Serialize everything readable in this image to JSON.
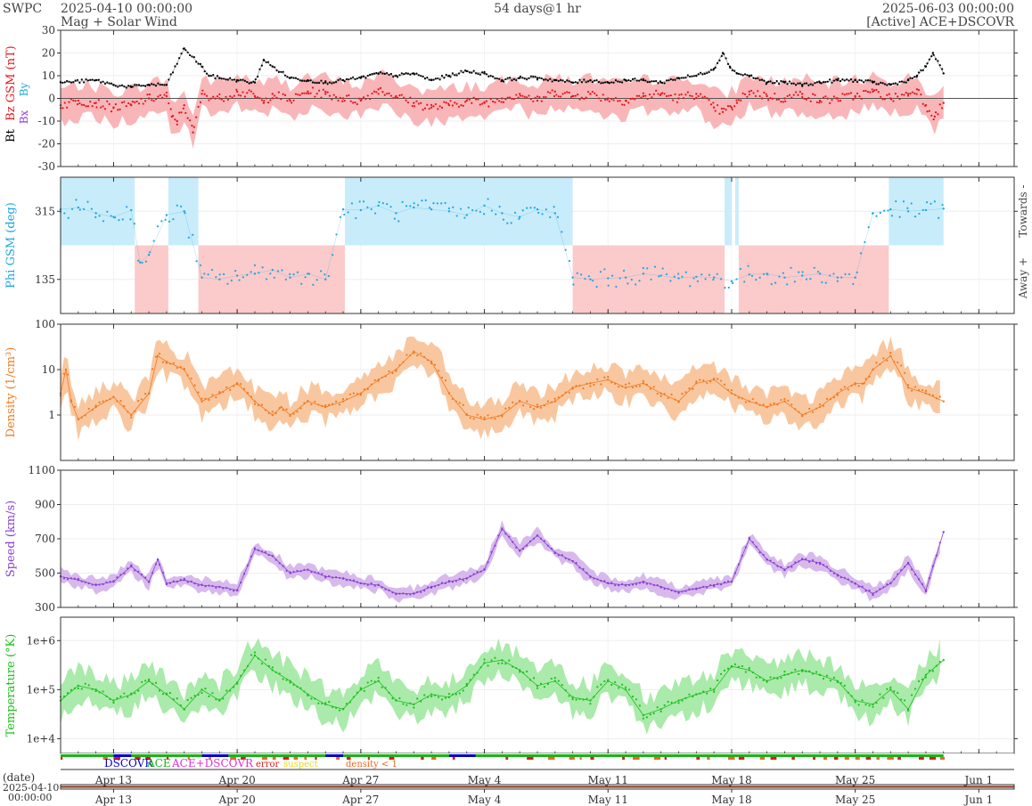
{
  "header": {
    "org": "SWPC",
    "start": "2025-04-10 00:00:00",
    "subtitle": "Mag + Solar Wind",
    "span": "54 days@1 hr",
    "end": "2025-06-03 00:00:00",
    "source": "[Active] ACE+DSCOVR"
  },
  "footer": {
    "date_label": "(date)",
    "date_value": "2025-04-10",
    "time_value": "00:00:00"
  },
  "legend": {
    "dscovr": "DSCOVR",
    "ace": "ACE",
    "both": "ACE+DSCOVR",
    "error": "error",
    "suspect": "suspect",
    "density": "density < 1"
  },
  "colors": {
    "bt": "#000000",
    "bz": "#e8141c",
    "bz_fill": "#f7a4a8",
    "bx": "#8b3fd6",
    "by": "#22aadd",
    "phi": "#1ea6e3",
    "phi_towards_fill": "#c8ecfa",
    "phi_away_fill": "#fbcaca",
    "density": "#f07a22",
    "density_fill": "#f8bd8e",
    "speed": "#8a3fd3",
    "speed_fill": "#d0ade9",
    "temperature": "#1fbf1f",
    "temperature_fill": "#9be69b",
    "dscovr": "#0000cc",
    "ace": "#18b418",
    "both": "#e02fd8",
    "error": "#e41818",
    "suspect": "#ead51a",
    "density_flag": "#ee6622"
  },
  "chart_data": {
    "type": "line",
    "x_unit": "days since 2025-04-10",
    "x_range": [
      0,
      54
    ],
    "x_ticks": [
      {
        "day": 3,
        "label": "Apr 13"
      },
      {
        "day": 10,
        "label": "Apr 20"
      },
      {
        "day": 17,
        "label": "Apr 27"
      },
      {
        "day": 24,
        "label": "May 4"
      },
      {
        "day": 31,
        "label": "May 11"
      },
      {
        "day": 38,
        "label": "May 18"
      },
      {
        "day": 45,
        "label": "May 25"
      },
      {
        "day": 52,
        "label": "Jun 1"
      }
    ],
    "data_end_day": 50,
    "panels": [
      {
        "id": "mag",
        "ylabel": "Bt  Bz GSM (nT)",
        "ylabel_parts": [
          "Bt",
          "Bz GSM (nT)"
        ],
        "legend_extra": [
          "Bx",
          "By"
        ],
        "scale": "linear",
        "ylim": [
          -30,
          30
        ],
        "yticks": [
          -30,
          -20,
          -10,
          0,
          10,
          20,
          30
        ],
        "series": [
          {
            "name": "Bt",
            "x": [
              0,
              2,
              3,
              4,
              5,
              6,
              7,
              8,
              8.4,
              9,
              10,
              10.8,
              11,
              11.5,
              12,
              13,
              14,
              15,
              16,
              17,
              18,
              19,
              20,
              21,
              22,
              23,
              24,
              25,
              26,
              27,
              28,
              29,
              30,
              31,
              32,
              33,
              34,
              35,
              36,
              37,
              37.5,
              37.9,
              38.3,
              39,
              40,
              41,
              42,
              43,
              44,
              45,
              46,
              47,
              48,
              48.5,
              49,
              49.4,
              50
            ],
            "y": [
              7,
              8,
              6,
              5,
              6,
              6,
              22,
              14,
              10,
              9,
              8,
              7,
              7,
              17,
              14,
              9,
              8,
              7,
              8,
              9,
              11,
              10,
              11,
              8,
              10,
              12,
              11,
              8,
              9,
              9,
              8,
              7,
              8,
              7,
              8,
              8,
              7,
              9,
              10,
              13,
              20,
              14,
              11,
              10,
              7,
              7,
              6,
              7,
              8,
              8,
              7,
              6,
              8,
              10,
              14,
              20,
              11
            ]
          },
          {
            "name": "Bz",
            "x": [
              0,
              1,
              2,
              3,
              4,
              5,
              6,
              6.3,
              6.6,
              7,
              7.5,
              8,
              9,
              10,
              11,
              11.5,
              12,
              13,
              14,
              15,
              16,
              17,
              18,
              19,
              20,
              21,
              22,
              23,
              24,
              25,
              26,
              27,
              28,
              29,
              30,
              31,
              32,
              33,
              34,
              35,
              36,
              37,
              37.5,
              38,
              38.3,
              39,
              40,
              41,
              42,
              43,
              44,
              45,
              46,
              47,
              48,
              48.5,
              49,
              49.5,
              50
            ],
            "y": [
              -3,
              -1,
              -2,
              -4,
              -3,
              0,
              1,
              -8,
              -10,
              -3,
              -15,
              2,
              0,
              3,
              1,
              -2,
              2,
              -1,
              3,
              2,
              0,
              -1,
              4,
              1,
              -2,
              -4,
              -3,
              -1,
              -2,
              0,
              2,
              -1,
              3,
              1,
              2,
              0,
              -1,
              1,
              2,
              0,
              2,
              -4,
              -6,
              -4,
              -2,
              3,
              1,
              0,
              2,
              -1,
              0,
              1,
              3,
              0,
              2,
              4,
              -3,
              -8,
              -2
            ]
          }
        ]
      },
      {
        "id": "phi",
        "ylabel": "Phi GSM (deg)",
        "right_labels": [
          "Towards -",
          "Away +"
        ],
        "scale": "linear",
        "ylim": [
          45,
          405
        ],
        "yticks": [
          135,
          315
        ],
        "towards_intervals": [
          [
            0,
            4.2
          ],
          [
            6.1,
            7.8
          ],
          [
            16.1,
            29
          ],
          [
            37.6,
            38
          ],
          [
            38.2,
            38.4
          ],
          [
            46.9,
            50
          ]
        ],
        "away_intervals": [
          [
            4.2,
            6.1
          ],
          [
            7.8,
            16.1
          ],
          [
            29,
            37.6
          ],
          [
            38.4,
            46.9
          ]
        ],
        "series": [
          {
            "name": "Phi",
            "x": [
              0,
              1,
              2,
              3,
              4,
              4.5,
              5,
              6,
              7,
              8,
              9,
              10,
              11,
              12,
              13,
              14,
              15,
              16,
              17,
              18,
              19,
              20,
              21,
              22,
              23,
              24,
              25,
              26,
              27,
              28,
              29,
              30,
              31,
              32,
              33,
              34,
              35,
              36,
              37,
              38,
              39,
              40,
              41,
              42,
              43,
              44,
              45,
              46,
              47,
              48,
              49,
              50
            ],
            "y": [
              320,
              325,
              310,
              300,
              318,
              180,
              200,
              305,
              315,
              140,
              135,
              145,
              150,
              160,
              140,
              150,
              135,
              320,
              318,
              330,
              310,
              325,
              320,
              315,
              305,
              330,
              310,
              300,
              320,
              310,
              140,
              135,
              138,
              140,
              150,
              145,
              138,
              142,
              140,
              130,
              148,
              150,
              140,
              145,
              150,
              140,
              140,
              310,
              320,
              315,
              318,
              322
            ]
          }
        ]
      },
      {
        "id": "density",
        "ylabel": "Density (1/cm³)",
        "scale": "log",
        "ylim": [
          0.1,
          100
        ],
        "yticks": [
          1,
          10,
          100
        ],
        "series": [
          {
            "name": "Density",
            "x": [
              0,
              0.3,
              0.6,
              1,
              2,
              3,
              4,
              5,
              5.5,
              6,
              7,
              8,
              9,
              10,
              11,
              12,
              12.5,
              13,
              14,
              15,
              16,
              17,
              18,
              19,
              20,
              21,
              22,
              23,
              24,
              25,
              26,
              27,
              28,
              29,
              30,
              31,
              32,
              33,
              34,
              35,
              36,
              37,
              38,
              39,
              40,
              41,
              42,
              43,
              44,
              45,
              45.5,
              46,
              47,
              48,
              49,
              50
            ],
            "y": [
              3,
              10,
              2,
              0.8,
              1.5,
              2.5,
              1,
              3,
              20,
              15,
              10,
              2,
              3,
              5,
              2,
              1,
              1.5,
              1,
              2,
              1.5,
              2,
              3,
              6,
              10,
              25,
              15,
              3,
              1,
              0.8,
              1,
              2,
              1.5,
              2,
              4,
              5,
              6,
              4,
              5,
              3,
              2,
              5,
              6,
              3,
              2,
              1.5,
              2,
              1,
              1.5,
              3,
              5,
              5,
              10,
              20,
              4,
              3,
              2
            ]
          }
        ]
      },
      {
        "id": "speed",
        "ylabel": "Speed (km/s)",
        "scale": "linear",
        "ylim": [
          300,
          1100
        ],
        "yticks": [
          300,
          500,
          700,
          900,
          1100
        ],
        "series": [
          {
            "name": "Speed",
            "x": [
              0,
              1,
              2,
              3,
              4,
              5,
              5.5,
              6,
              7,
              8,
              9,
              10,
              11,
              12,
              13,
              14,
              15,
              16,
              17,
              18,
              19,
              20,
              21,
              22,
              23,
              24,
              25,
              26,
              27,
              28,
              29,
              30,
              31,
              32,
              33,
              34,
              35,
              36,
              37,
              38,
              39,
              40,
              41,
              42,
              43,
              44,
              45,
              46,
              47,
              48,
              49,
              50
            ],
            "y": [
              480,
              460,
              430,
              450,
              540,
              450,
              580,
              440,
              460,
              430,
              420,
              400,
              640,
              600,
              500,
              520,
              480,
              470,
              440,
              430,
              380,
              380,
              420,
              450,
              470,
              520,
              760,
              630,
              720,
              620,
              570,
              480,
              440,
              430,
              450,
              420,
              390,
              410,
              430,
              450,
              700,
              580,
              520,
              580,
              560,
              490,
              440,
              380,
              440,
              560,
              400,
              740
            ]
          }
        ]
      },
      {
        "id": "temperature",
        "ylabel": "Temperature (°K)",
        "scale": "log",
        "ylim": [
          5000,
          3000000
        ],
        "yticks": [
          10000,
          100000,
          1000000
        ],
        "ytick_labels": [
          "1e+4",
          "1e+5",
          "1e+6"
        ],
        "series": [
          {
            "name": "Temperature",
            "x": [
              0,
              1,
              2,
              3,
              4,
              5,
              6,
              7,
              8,
              9,
              10,
              11,
              12,
              13,
              14,
              15,
              16,
              17,
              18,
              19,
              20,
              21,
              22,
              23,
              24,
              25,
              26,
              27,
              28,
              29,
              30,
              31,
              32,
              33,
              34,
              35,
              36,
              37,
              38,
              39,
              40,
              41,
              42,
              43,
              44,
              45,
              46,
              47,
              48,
              49,
              50
            ],
            "y": [
              60000,
              120000,
              100000,
              60000,
              80000,
              150000,
              80000,
              40000,
              100000,
              60000,
              140000,
              500000,
              250000,
              150000,
              80000,
              50000,
              40000,
              100000,
              150000,
              60000,
              50000,
              80000,
              70000,
              120000,
              350000,
              400000,
              250000,
              120000,
              150000,
              70000,
              60000,
              150000,
              100000,
              30000,
              40000,
              60000,
              80000,
              100000,
              300000,
              250000,
              150000,
              200000,
              250000,
              200000,
              150000,
              60000,
              50000,
              100000,
              40000,
              200000,
              400000
            ]
          }
        ]
      }
    ]
  }
}
